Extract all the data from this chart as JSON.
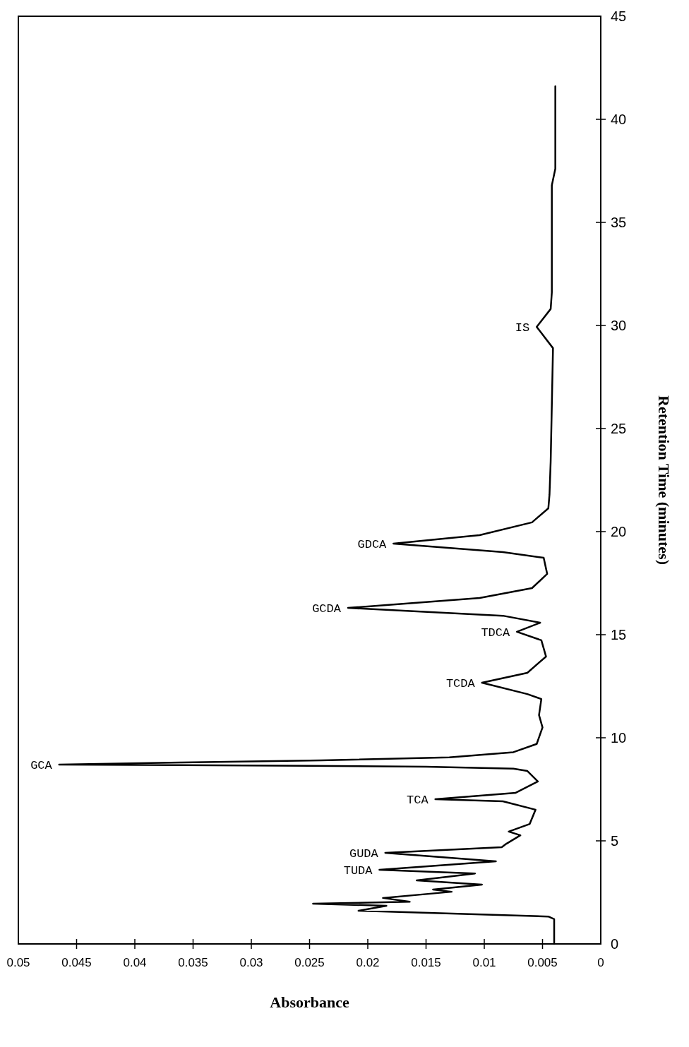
{
  "chart_data": {
    "type": "line",
    "xlabel": "Absorbance",
    "ylabel": "Retention Time (minutes)",
    "color": "#000000",
    "xlim": [
      0.05,
      0
    ],
    "xticks": [
      0.05,
      0.045,
      0.04,
      0.035,
      0.03,
      0.025,
      0.02,
      0.015,
      0.01,
      0.005,
      0
    ],
    "ylim": [
      0,
      45
    ],
    "yticks": [
      0,
      5,
      10,
      15,
      20,
      25,
      30,
      35,
      40,
      45
    ],
    "x": [
      0.004,
      0.004,
      0.0045,
      0.0208,
      0.0184,
      0.0247,
      0.0164,
      0.0187,
      0.0128,
      0.0144,
      0.0102,
      0.0158,
      0.0132,
      0.0108,
      0.019,
      0.009,
      0.0185,
      0.0085,
      0.0081,
      0.0069,
      0.0079,
      0.0061,
      0.0056,
      0.0084,
      0.0142,
      0.0073,
      0.0054,
      0.0063,
      0.0075,
      0.015,
      0.025,
      0.0465,
      0.036,
      0.024,
      0.013,
      0.0075,
      0.0055,
      0.005,
      0.0053,
      0.0051,
      0.0063,
      0.0102,
      0.0063,
      0.0047,
      0.0051,
      0.0072,
      0.0052,
      0.0084,
      0.0217,
      0.0104,
      0.0059,
      0.0046,
      0.0049,
      0.0084,
      0.0178,
      0.0104,
      0.0059,
      0.0045,
      0.0044,
      0.0043,
      0.0041,
      0.0055,
      0.0043,
      0.0042,
      0.0042,
      0.0039,
      0.0039,
      0.0039
    ],
    "values": [
      0,
      1.2,
      1.33,
      1.61,
      1.85,
      1.95,
      2.05,
      2.23,
      2.53,
      2.64,
      2.88,
      3.08,
      3.25,
      3.42,
      3.6,
      4.01,
      4.42,
      4.69,
      4.86,
      5.27,
      5.45,
      5.82,
      6.51,
      6.92,
      7.02,
      7.33,
      7.88,
      8.39,
      8.5,
      8.6,
      8.64,
      8.7,
      8.8,
      8.9,
      9.05,
      9.3,
      9.7,
      10.5,
      11.1,
      11.88,
      12.12,
      12.67,
      13.15,
      13.94,
      14.73,
      15.14,
      15.58,
      15.92,
      16.3,
      16.78,
      17.26,
      17.95,
      18.73,
      19.01,
      19.42,
      19.83,
      20.45,
      21.13,
      21.8,
      23.4,
      28.9,
      29.93,
      30.8,
      31.6,
      36.8,
      37.6,
      40,
      41.6
    ],
    "annotations": [
      {
        "text": "TUDA",
        "x": 0.019,
        "y": 3.6
      },
      {
        "text": "GUDA",
        "x": 0.0185,
        "y": 4.42
      },
      {
        "text": "TCA",
        "x": 0.0142,
        "y": 7.02
      },
      {
        "text": "GCA",
        "x": 0.0465,
        "y": 8.7
      },
      {
        "text": "TCDA",
        "x": 0.0102,
        "y": 12.67
      },
      {
        "text": "TDCA",
        "x": 0.0072,
        "y": 15.14
      },
      {
        "text": "GCDA",
        "x": 0.0217,
        "y": 16.3
      },
      {
        "text": "GDCA",
        "x": 0.0178,
        "y": 19.42
      },
      {
        "text": "IS",
        "x": 0.0055,
        "y": 29.93
      }
    ]
  }
}
